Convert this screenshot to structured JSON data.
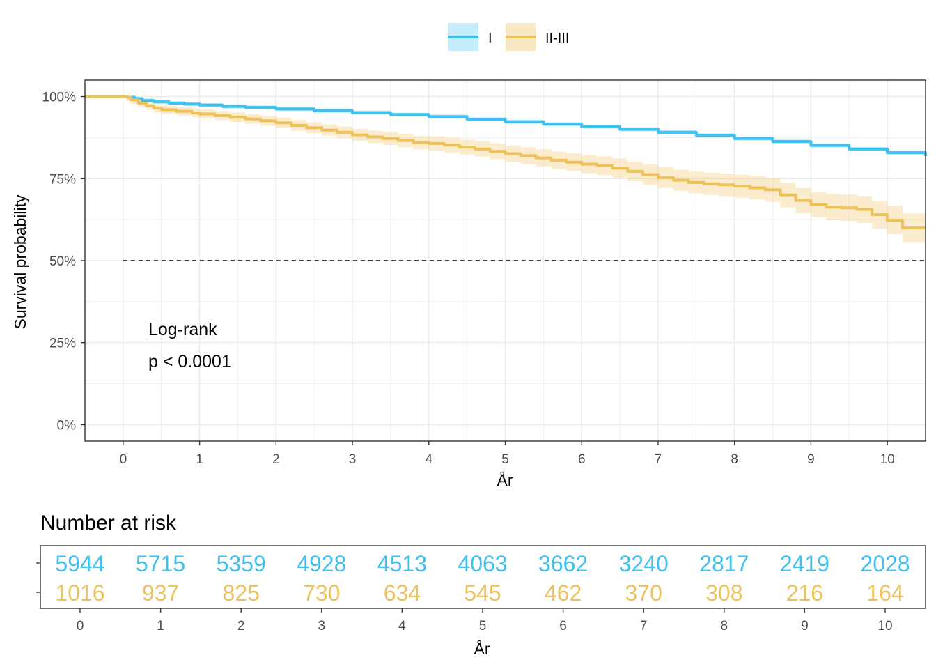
{
  "colors": {
    "I": "#3ec1ef",
    "II-III": "#eec15a",
    "grid": "#ebebeb",
    "panel_border": "#333333"
  },
  "legend": {
    "entries": [
      "I",
      "II-III"
    ]
  },
  "chart_data": [
    {
      "type": "line",
      "subtype": "kaplan-meier",
      "ylabel": "Survival probability",
      "xlabel": "År",
      "xlim": [
        -0.5,
        10.5
      ],
      "ylim": [
        -0.05,
        1.05
      ],
      "xticks": [
        0,
        1,
        2,
        3,
        4,
        5,
        6,
        7,
        8,
        9,
        10
      ],
      "yticks": [
        0,
        0.25,
        0.5,
        0.75,
        1.0
      ],
      "ytick_labels": [
        "0%",
        "25%",
        "50%",
        "75%",
        "100%"
      ],
      "grid": true,
      "legend_position": "top",
      "median_line": {
        "y": 0.5,
        "x_from": 0,
        "x_to": 10.5,
        "style": "dashed"
      },
      "annotation": [
        "Log-rank",
        "p < 0.0001"
      ],
      "series": [
        {
          "name": "I",
          "x": [
            -0.5,
            0,
            0.05,
            0.15,
            0.25,
            0.4,
            0.6,
            0.8,
            1.0,
            1.3,
            1.6,
            2.0,
            2.5,
            3.0,
            3.5,
            4.0,
            4.5,
            5.0,
            5.5,
            6.0,
            6.5,
            7.0,
            7.5,
            8.0,
            8.5,
            9.0,
            9.5,
            10.0,
            10.5
          ],
          "y": [
            1.0,
            1.0,
            0.998,
            0.993,
            0.988,
            0.984,
            0.98,
            0.977,
            0.974,
            0.97,
            0.967,
            0.962,
            0.957,
            0.951,
            0.945,
            0.939,
            0.931,
            0.923,
            0.916,
            0.908,
            0.9,
            0.891,
            0.882,
            0.872,
            0.863,
            0.851,
            0.84,
            0.829,
            0.818
          ],
          "ci_halfwidth": 0.006
        },
        {
          "name": "II-III",
          "x": [
            -0.5,
            0,
            0.05,
            0.1,
            0.2,
            0.3,
            0.4,
            0.5,
            0.7,
            0.9,
            1.0,
            1.2,
            1.4,
            1.6,
            1.8,
            2.0,
            2.2,
            2.4,
            2.6,
            2.8,
            3.0,
            3.2,
            3.4,
            3.6,
            3.8,
            4.0,
            4.2,
            4.4,
            4.6,
            4.8,
            5.0,
            5.2,
            5.4,
            5.6,
            5.8,
            6.0,
            6.2,
            6.4,
            6.6,
            6.8,
            7.0,
            7.2,
            7.4,
            7.6,
            7.8,
            8.0,
            8.2,
            8.4,
            8.6,
            8.8,
            9.0,
            9.2,
            9.4,
            9.6,
            9.8,
            10.0,
            10.2,
            10.5
          ],
          "y": [
            1.0,
            1.0,
            0.998,
            0.99,
            0.98,
            0.972,
            0.965,
            0.96,
            0.955,
            0.95,
            0.947,
            0.942,
            0.937,
            0.932,
            0.926,
            0.92,
            0.912,
            0.905,
            0.898,
            0.891,
            0.883,
            0.877,
            0.872,
            0.866,
            0.86,
            0.857,
            0.852,
            0.846,
            0.84,
            0.833,
            0.826,
            0.82,
            0.813,
            0.806,
            0.8,
            0.794,
            0.789,
            0.782,
            0.772,
            0.762,
            0.753,
            0.745,
            0.738,
            0.734,
            0.731,
            0.727,
            0.722,
            0.716,
            0.7,
            0.683,
            0.67,
            0.663,
            0.661,
            0.656,
            0.64,
            0.623,
            0.6,
            0.6
          ],
          "ci_halfwidth_start": 0.012,
          "ci_halfwidth_end": 0.045
        }
      ]
    },
    {
      "type": "table",
      "title": "Number at risk",
      "xlabel": "År",
      "xticks": [
        0,
        1,
        2,
        3,
        4,
        5,
        6,
        7,
        8,
        9,
        10
      ],
      "rows": [
        {
          "name": "I",
          "values": [
            5944,
            5715,
            5359,
            4928,
            4513,
            4063,
            3662,
            3240,
            2817,
            2419,
            2028
          ]
        },
        {
          "name": "II-III",
          "values": [
            1016,
            937,
            825,
            730,
            634,
            545,
            462,
            370,
            308,
            216,
            164
          ]
        }
      ]
    }
  ]
}
